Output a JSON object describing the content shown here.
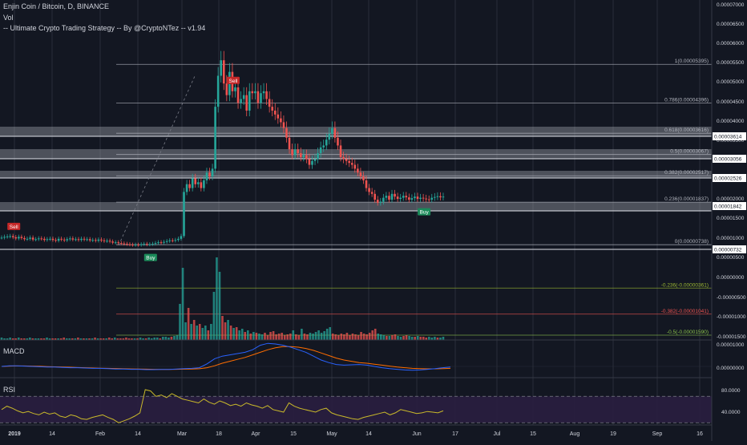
{
  "header": {
    "symbol": "Enjin Coin / Bitcoin, D, BINANCE",
    "volume_label": "Vol",
    "strategy_label": "-- Ultimate Crypto Trading Strategy -- By @CryptoNTez -- v1.94"
  },
  "panes": {
    "macd_label": "MACD",
    "rsi_label": "RSI"
  },
  "colors": {
    "background": "#131722",
    "grid": "#2a2e39",
    "up": "#26a69a",
    "down": "#ef5350",
    "fib_band": "#9598a1",
    "dashed": "#787b86",
    "macd_line": "#2962ff",
    "signal_line": "#ff6d00",
    "rsi_line": "#c9b92a",
    "rsi_band": "#2a1e40",
    "sell_tag": "#c62828",
    "buy_tag": "#1b8a5a"
  },
  "chart_data": {
    "type": "candlestick",
    "x_axis_labels": [
      "2019",
      "14",
      "Feb",
      "14",
      "Mar",
      "18",
      "Apr",
      "15",
      "May",
      "14",
      "Jun",
      "17",
      "Jul",
      "15",
      "Aug",
      "19",
      "Sep",
      "16"
    ],
    "y_axis_ticks": [
      "0.00007000",
      "0.00006500",
      "0.00006000",
      "0.00005500",
      "0.00005000",
      "0.00004500",
      "0.00004000",
      "0.00003500",
      "0.00003000",
      "0.00002500",
      "0.00002000",
      "0.00001500",
      "0.00001000",
      "0.00000500",
      "0.00000000",
      "-0.00000500",
      "-0.00001000",
      "-0.00001500"
    ],
    "price_badges": [
      "0.00003614",
      "0.00003056",
      "0.00002526",
      "0.00001842",
      "0.00000732"
    ],
    "fib_levels": [
      {
        "label": "1(0.00005395)",
        "value": 5.395e-05
      },
      {
        "label": "0.786(0.00004396)",
        "value": 4.396e-05
      },
      {
        "label": "0.618(0.00003616)",
        "value": 3.616e-05
      },
      {
        "label": "0.5(0.00003067)",
        "value": 3.067e-05
      },
      {
        "label": "0.382(0.00002517)",
        "value": 2.517e-05
      },
      {
        "label": "0.236(0.00001837)",
        "value": 1.837e-05
      },
      {
        "label": "0(0.00000738)",
        "value": 7.38e-06
      },
      {
        "label": "-0.236(-0.00000361)",
        "value": -3.61e-06
      },
      {
        "label": "-0.382(-0.00001041)",
        "value": -1.041e-05
      },
      {
        "label": "-0.5(-0.00001590)",
        "value": -1.59e-05
      }
    ],
    "signals": [
      {
        "label": "Sell",
        "date_index": 4
      },
      {
        "label": "Buy",
        "date_index": 52
      },
      {
        "label": "Sell",
        "date_index": 81
      },
      {
        "label": "Buy",
        "date_index": 148
      }
    ],
    "close_series": [
      9.2,
      9.4,
      9.5,
      9.6,
      9.3,
      9.0,
      9.4,
      9.1,
      8.8,
      8.9,
      9.2,
      8.7,
      8.8,
      9.0,
      8.9,
      8.6,
      8.8,
      8.9,
      8.6,
      8.4,
      8.9,
      8.7,
      8.5,
      8.8,
      9.0,
      8.7,
      8.8,
      8.6,
      8.9,
      8.7,
      8.8,
      8.5,
      8.6,
      8.4,
      8.7,
      8.5,
      8.3,
      8.4,
      8.2,
      7.9,
      8.0,
      7.8,
      7.7,
      7.6,
      7.5,
      7.4,
      7.3,
      7.4,
      7.3,
      7.5,
      7.6,
      7.4,
      7.5,
      7.6,
      7.8,
      8.0,
      7.9,
      8.1,
      8.3,
      8.5,
      8.4,
      8.6,
      8.9,
      9.6,
      21.0,
      23.0,
      22.0,
      24.5,
      23.0,
      23.5,
      22.0,
      24.0,
      26.0,
      25.0,
      27.0,
      43.0,
      51.0,
      55.0,
      49.0,
      46.0,
      52.0,
      47.0,
      48.0,
      44.0,
      45.0,
      46.0,
      42.0,
      47.0,
      46.5,
      47.0,
      44.0,
      46.5,
      47.0,
      45.0,
      43.0,
      42.0,
      41.0,
      40.0,
      39.0,
      37.5,
      35.0,
      32.0,
      30.5,
      32.0,
      31.0,
      30.0,
      30.5,
      29.5,
      28.0,
      29.0,
      29.5,
      31.0,
      32.5,
      33.0,
      34.5,
      36.0,
      37.5,
      35.0,
      33.0,
      30.0,
      29.5,
      29.0,
      28.5,
      28.0,
      27.0,
      26.0,
      25.0,
      24.0,
      22.0,
      21.0,
      20.5,
      19.0,
      18.2,
      18.5,
      19.5,
      20.0,
      19.0,
      20.5,
      19.8,
      19.2,
      19.5,
      20.0,
      19.6,
      19.0,
      19.4,
      19.8,
      19.2,
      19.5,
      19.3,
      19.1,
      19.0,
      19.5,
      19.7,
      19.9,
      19.6,
      19.8
    ],
    "volume_series": [
      3,
      2,
      2,
      3,
      2,
      2,
      3,
      2,
      2,
      2,
      3,
      2,
      2,
      2,
      2,
      2,
      3,
      2,
      2,
      2,
      2,
      2,
      3,
      2,
      2,
      2,
      2,
      3,
      2,
      2,
      2,
      2,
      2,
      3,
      2,
      2,
      2,
      2,
      3,
      2,
      3,
      2,
      2,
      2,
      3,
      2,
      2,
      2,
      2,
      3,
      2,
      2,
      3,
      2,
      3,
      3,
      2,
      4,
      4,
      3,
      4,
      5,
      6,
      45,
      90,
      22,
      40,
      20,
      25,
      18,
      20,
      15,
      18,
      12,
      20,
      60,
      103,
      85,
      30,
      22,
      25,
      18,
      15,
      16,
      12,
      14,
      10,
      12,
      8,
      10,
      9,
      8,
      7,
      9,
      6,
      10,
      11,
      7,
      8,
      9,
      6,
      7,
      8,
      12,
      7,
      6,
      14,
      8,
      7,
      9,
      8,
      10,
      12,
      9,
      11,
      14,
      16,
      8,
      7,
      6,
      8,
      7,
      9,
      6,
      8,
      7,
      6,
      10,
      8,
      7,
      9,
      12,
      14,
      8,
      7,
      6,
      5,
      5,
      6,
      7,
      5,
      4,
      5,
      6,
      5,
      4,
      4,
      5,
      4,
      4,
      3,
      4,
      3,
      4,
      3,
      3,
      4
    ],
    "macd_series": [
      0,
      0.1,
      0.1,
      0.05,
      0,
      -0.05,
      -0.1,
      -0.1,
      -0.15,
      -0.2,
      -0.2,
      -0.25,
      -0.3,
      -0.3,
      -0.35,
      -0.4,
      -0.4,
      -0.45,
      -0.45,
      -0.5,
      -0.5,
      -0.48,
      -0.46,
      -0.4,
      -0.35,
      -0.3,
      -0.2,
      0.4,
      1.2,
      1.6,
      1.8,
      2.0,
      2.2,
      2.6,
      3.3,
      3.6,
      3.5,
      3.3,
      3.0,
      2.6,
      2.2,
      1.6,
      1.0,
      0.6,
      0.3,
      0.2,
      0.25,
      0.3,
      0.2,
      0.0,
      -0.2,
      -0.35,
      -0.45,
      -0.55,
      -0.6,
      -0.55,
      -0.45,
      -0.35,
      -0.2,
      -0.1
    ],
    "signal_series": [
      0,
      0.05,
      0.08,
      0.07,
      0.05,
      0.02,
      -0.02,
      -0.06,
      -0.1,
      -0.13,
      -0.17,
      -0.2,
      -0.24,
      -0.27,
      -0.3,
      -0.33,
      -0.36,
      -0.39,
      -0.41,
      -0.43,
      -0.45,
      -0.46,
      -0.46,
      -0.45,
      -0.43,
      -0.4,
      -0.36,
      -0.2,
      0.1,
      0.5,
      0.8,
      1.1,
      1.4,
      1.8,
      2.2,
      2.6,
      2.9,
      3.1,
      3.1,
      3.0,
      2.8,
      2.5,
      2.1,
      1.7,
      1.3,
      1.0,
      0.8,
      0.6,
      0.5,
      0.35,
      0.2,
      0.05,
      -0.1,
      -0.2,
      -0.3,
      -0.35,
      -0.38,
      -0.38,
      -0.35,
      -0.3
    ],
    "rsi_series": [
      50,
      55,
      52,
      48,
      45,
      47,
      44,
      42,
      46,
      43,
      45,
      40,
      38,
      42,
      40,
      36,
      35,
      38,
      40,
      42,
      38,
      35,
      30,
      33,
      36,
      40,
      45,
      80,
      78,
      70,
      72,
      68,
      74,
      70,
      66,
      64,
      62,
      60,
      66,
      61,
      58,
      63,
      60,
      56,
      58,
      55,
      60,
      57,
      55,
      52,
      56,
      50,
      48,
      46,
      60,
      55,
      52,
      50,
      48,
      46,
      50,
      52,
      45,
      42,
      40,
      38,
      36,
      35,
      38,
      40,
      42,
      44,
      46,
      42,
      45,
      50,
      48,
      46,
      44,
      45,
      47,
      46,
      45,
      48
    ],
    "rsi_band": [
      30,
      70
    ],
    "rsi_ticks": [
      "80.0000",
      "40.0000"
    ],
    "macd_ticks": [
      "0.00001000",
      "0.00000000"
    ]
  }
}
